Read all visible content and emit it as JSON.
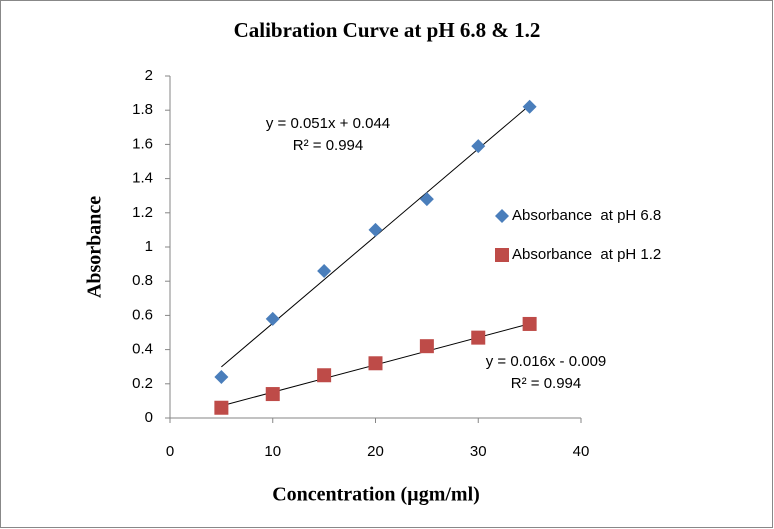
{
  "chart_data": {
    "type": "scatter",
    "title": "Calibration Curve at pH 6.8 & 1.2",
    "x_label": "Concentration (µgm/ml)",
    "y_label": "Absorbance",
    "x": [
      5,
      10,
      15,
      20,
      25,
      30,
      35
    ],
    "series": [
      {
        "name": "Absorbance  at pH 6.8",
        "color": "#4a7ebb",
        "marker": "diamond",
        "values": [
          0.24,
          0.58,
          0.86,
          1.1,
          1.28,
          1.59,
          1.82
        ],
        "trendline": {
          "slope": 0.051,
          "intercept": 0.044,
          "equation": "y = 0.051x + 0.044",
          "r2": "R² = 0.994"
        }
      },
      {
        "name": "Absorbance  at pH 1.2",
        "color": "#be4b48",
        "marker": "square",
        "values": [
          0.06,
          0.14,
          0.25,
          0.32,
          0.42,
          0.47,
          0.55
        ],
        "trendline": {
          "slope": 0.016,
          "intercept": -0.009,
          "equation": "y = 0.016x - 0.009",
          "r2": "R² = 0.994"
        }
      }
    ],
    "xlim": [
      0,
      40
    ],
    "xticks": [
      0,
      10,
      20,
      30,
      40
    ],
    "ylim": [
      0,
      2
    ],
    "yticks": [
      0,
      0.2,
      0.4,
      0.6,
      0.8,
      1,
      1.2,
      1.4,
      1.6,
      1.8,
      2
    ],
    "grid": false,
    "legend": "right"
  }
}
